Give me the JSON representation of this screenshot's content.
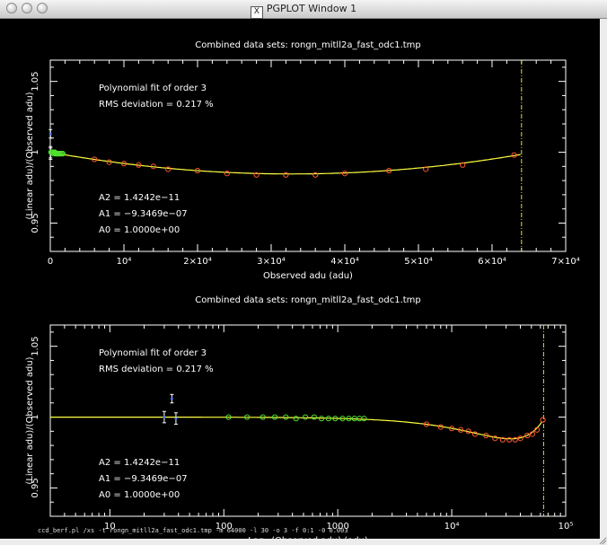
{
  "window": {
    "title": "PGPLOT Window 1",
    "x_icon": "X",
    "command_line": "ccd_berf.pl /xs -t rongn_mitll2a_fast_odc1.tmp -m 64000 -l 30 -o 3 -f 0:1 -0 0.003",
    "colors": {
      "background": "#000000",
      "fit": "#ffff40",
      "red_points": "#ff5a2a",
      "green_points": "#50e030",
      "blue_points": "#4a7aff",
      "vline": "#e8d83a"
    }
  },
  "chart_data": [
    {
      "type": "scatter",
      "title": "Combined data sets: rongn_mitll2a_fast_odc1.tmp",
      "xlabel": "Observed adu (adu)",
      "ylabel": "(Linear adu)/(Observed adu)",
      "xscale": "linear",
      "xlim": [
        0,
        70000
      ],
      "ylim": [
        0.93,
        1.065
      ],
      "xticks": [
        {
          "value": 0,
          "label": "0"
        },
        {
          "value": 10000,
          "label": "10⁴"
        },
        {
          "value": 20000,
          "label": "2×10⁴"
        },
        {
          "value": 30000,
          "label": "3×10⁴"
        },
        {
          "value": 40000,
          "label": "4×10⁴"
        },
        {
          "value": 50000,
          "label": "5×10⁴"
        },
        {
          "value": 60000,
          "label": "6×10⁴"
        },
        {
          "value": 70000,
          "label": "7×10⁴"
        }
      ],
      "yticks": [
        {
          "value": 0.95,
          "label": "0.95"
        },
        {
          "value": 1.0,
          "label": "1"
        },
        {
          "value": 1.05,
          "label": "1.05"
        }
      ],
      "vertical_line_x": 64000,
      "annotations": {
        "fit_order": "Polynomial fit of order  3",
        "rms": "RMS deviation =     0.217 %",
        "a2": "A2 = 1.4242e−11",
        "a1": "A1 = −9.3469e−07",
        "a0": "A0 = 1.0000e+00"
      },
      "fit": {
        "a0": 1.0,
        "a1": -9.3469e-07,
        "a2": 1.4242e-11,
        "a3": 0
      },
      "series": [
        {
          "color": "blue",
          "points": [
            [
              30,
              1.0
            ],
            [
              35,
              1.013
            ],
            [
              38,
              0.999
            ]
          ],
          "errors": [
            0.004,
            0.003,
            0.004
          ]
        },
        {
          "color": "green",
          "points": [
            [
              110,
              1.0
            ],
            [
              160,
              1.0
            ],
            [
              220,
              1.0
            ],
            [
              280,
              1.0
            ],
            [
              350,
              1.0
            ],
            [
              430,
              0.999
            ],
            [
              520,
              1.0
            ],
            [
              620,
              1.0
            ],
            [
              720,
              0.999
            ],
            [
              830,
              0.999
            ],
            [
              950,
              0.999
            ],
            [
              1100,
              0.999
            ],
            [
              1250,
              0.999
            ],
            [
              1400,
              0.999
            ],
            [
              1550,
              0.999
            ],
            [
              1700,
              0.999
            ]
          ]
        },
        {
          "color": "red",
          "points": [
            [
              6000,
              0.995
            ],
            [
              8000,
              0.993
            ],
            [
              10000,
              0.992
            ],
            [
              12000,
              0.991
            ],
            [
              14000,
              0.99
            ],
            [
              16000,
              0.988
            ],
            [
              20000,
              0.987
            ],
            [
              24000,
              0.985
            ],
            [
              28000,
              0.984
            ],
            [
              32000,
              0.984
            ],
            [
              36000,
              0.984
            ],
            [
              40000,
              0.985
            ],
            [
              46000,
              0.987
            ],
            [
              51000,
              0.988
            ],
            [
              56000,
              0.991
            ],
            [
              63000,
              0.998
            ]
          ]
        }
      ]
    },
    {
      "type": "scatter",
      "title": "Combined data sets: rongn_mitll2a_fast_odc1.tmp",
      "xlabel": "Log₁₀(Observed adu) (adu)",
      "ylabel": "(Linear adu)/(Observed adu)",
      "xscale": "log",
      "xlim": [
        3,
        100000
      ],
      "ylim": [
        0.93,
        1.065
      ],
      "xticks": [
        {
          "value": 10,
          "label": "10"
        },
        {
          "value": 100,
          "label": "100"
        },
        {
          "value": 1000,
          "label": "1000"
        },
        {
          "value": 10000,
          "label": "10⁴"
        },
        {
          "value": 100000,
          "label": "10⁵"
        }
      ],
      "yticks": [
        {
          "value": 0.95,
          "label": "0.95"
        },
        {
          "value": 1.0,
          "label": "1"
        },
        {
          "value": 1.05,
          "label": "1.05"
        }
      ],
      "vertical_line_x": 64000,
      "annotations": {
        "fit_order": "Polynomial fit of order  3",
        "rms": "RMS deviation =     0.217 %",
        "a2": "A2 = 1.4242e−11",
        "a1": "A1 = −9.3469e−07",
        "a0": "A0 = 1.0000e+00"
      },
      "fit": {
        "a0": 1.0,
        "a1": -9.3469e-07,
        "a2": 1.4242e-11,
        "a3": 0
      },
      "series": [
        {
          "color": "blue",
          "points": [
            [
              30,
              1.0
            ],
            [
              35,
              1.013
            ],
            [
              38,
              0.999
            ]
          ],
          "errors": [
            0.004,
            0.003,
            0.004
          ]
        },
        {
          "color": "green",
          "points": [
            [
              110,
              1.0
            ],
            [
              160,
              1.0
            ],
            [
              220,
              1.0
            ],
            [
              280,
              1.0
            ],
            [
              350,
              1.0
            ],
            [
              430,
              0.999
            ],
            [
              520,
              1.0
            ],
            [
              620,
              1.0
            ],
            [
              720,
              0.999
            ],
            [
              830,
              0.999
            ],
            [
              950,
              0.999
            ],
            [
              1100,
              0.999
            ],
            [
              1250,
              0.999
            ],
            [
              1400,
              0.999
            ],
            [
              1550,
              0.999
            ],
            [
              1700,
              0.999
            ]
          ]
        },
        {
          "color": "red",
          "points": [
            [
              6000,
              0.995
            ],
            [
              8000,
              0.993
            ],
            [
              10000,
              0.992
            ],
            [
              12000,
              0.991
            ],
            [
              14000,
              0.99
            ],
            [
              16000,
              0.988
            ],
            [
              20000,
              0.987
            ],
            [
              24000,
              0.985
            ],
            [
              28000,
              0.984
            ],
            [
              32000,
              0.984
            ],
            [
              36000,
              0.984
            ],
            [
              40000,
              0.985
            ],
            [
              46000,
              0.987
            ],
            [
              51000,
              0.988
            ],
            [
              56000,
              0.991
            ],
            [
              63000,
              0.998
            ]
          ]
        }
      ]
    }
  ]
}
